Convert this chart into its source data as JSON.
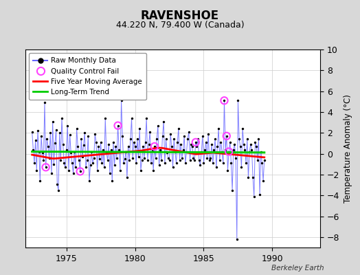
{
  "title": "RAVENSHOE",
  "subtitle": "44.220 N, 79.400 W (Canada)",
  "ylabel": "Temperature Anomaly (°C)",
  "attribution": "Berkeley Earth",
  "ylim": [
    -9,
    10
  ],
  "xlim": [
    1972.0,
    1993.5
  ],
  "yticks": [
    -8,
    -6,
    -4,
    -2,
    0,
    2,
    4,
    6,
    8,
    10
  ],
  "xticks": [
    1975,
    1980,
    1985,
    1990
  ],
  "bg_color": "#d8d8d8",
  "plot_bg": "#ffffff",
  "raw_color": "#6666ff",
  "dot_color": "#000000",
  "ma_color": "#ff0000",
  "trend_color": "#00cc00",
  "qc_color": "#ff44ff",
  "start_year": 1972.5,
  "trend_slope": -0.012,
  "trend_intercept": 0.3,
  "raw_data": [
    2.1,
    0.4,
    -0.9,
    1.3,
    -1.6,
    2.2,
    0.2,
    -2.6,
    1.7,
    0.1,
    -0.6,
    4.9,
    -1.3,
    1.4,
    0.7,
    -0.4,
    2.0,
    -1.9,
    3.1,
    -1.0,
    1.0,
    2.3,
    -2.9,
    -3.5,
    2.0,
    -0.6,
    3.4,
    0.9,
    -0.9,
    -1.3,
    0.4,
    2.7,
    -1.6,
    1.8,
    0.1,
    -0.9,
    -1.9,
    0.2,
    -1.3,
    2.4,
    0.7,
    -0.6,
    -1.7,
    1.4,
    -0.3,
    0.8,
    2.0,
    -1.3,
    -0.6,
    1.7,
    -2.6,
    -1.1,
    0.2,
    -0.9,
    -0.4,
    1.9,
    1.1,
    -1.6,
    0.7,
    -0.5,
    1.1,
    -0.9,
    0.4,
    -1.3,
    3.4,
    0.1,
    -0.6,
    0.9,
    -1.9,
    0.4,
    -2.6,
    1.1,
    -1.1,
    0.7,
    -0.4,
    2.7,
    0.4,
    -1.6,
    5.1,
    1.7,
    -0.9,
    -0.5,
    0.2,
    -2.3,
    0.7,
    -0.6,
    1.4,
    3.4,
    -0.4,
    1.1,
    0.7,
    -0.9,
    1.4,
    -0.3,
    2.4,
    -1.6,
    -0.6,
    0.7,
    -0.4,
    1.1,
    3.4,
    -0.6,
    0.9,
    2.1,
    -0.9,
    0.4,
    -1.6,
    0.7,
    -0.4,
    1.4,
    2.7,
    -1.1,
    0.4,
    -0.6,
    1.7,
    3.1,
    -0.9,
    1.4,
    0.1,
    -0.4,
    -0.6,
    1.9,
    0.7,
    -1.3,
    1.4,
    0.2,
    -0.9,
    1.1,
    2.4,
    -0.6,
    0.9,
    -0.4,
    0.4,
    1.7,
    -0.9,
    0.2,
    1.4,
    2.1,
    -0.6,
    0.9,
    0.7,
    -0.4,
    -0.6,
    1.1,
    0.7,
    1.4,
    -0.6,
    -1.1,
    0.2,
    1.7,
    -0.9,
    0.4,
    1.1,
    -0.4,
    1.9,
    -0.6,
    -0.4,
    0.9,
    -0.9,
    0.4,
    1.4,
    -1.3,
    0.7,
    2.4,
    -0.6,
    1.1,
    0.2,
    -0.9,
    5.1,
    0.4,
    1.7,
    -1.6,
    0.2,
    1.1,
    -0.9,
    -3.5,
    0.4,
    0.9,
    -0.4,
    -8.2,
    5.1,
    1.4,
    0.7,
    -1.3,
    2.4,
    0.9,
    0.4,
    -0.9,
    1.4,
    -2.3,
    0.2,
    0.9,
    0.4,
    -2.3,
    -4.1,
    1.1,
    0.7,
    -0.6,
    1.4,
    -3.9,
    0.2,
    -0.9,
    -2.6,
    -0.6
  ],
  "qc_indices": [
    12,
    42,
    75,
    107,
    143,
    168,
    170,
    172
  ],
  "ma_values": [
    -0.1,
    -0.12,
    -0.14,
    -0.16,
    -0.18,
    -0.2,
    -0.22,
    -0.24,
    -0.26,
    -0.28,
    -0.3,
    -0.32,
    -0.34,
    -0.36,
    -0.38,
    -0.4,
    -0.42,
    -0.44,
    -0.46,
    -0.46,
    -0.46,
    -0.45,
    -0.44,
    -0.43,
    -0.42,
    -0.41,
    -0.4,
    -0.39,
    -0.38,
    -0.37,
    -0.36,
    -0.35,
    -0.34,
    -0.33,
    -0.32,
    -0.31,
    -0.3,
    -0.29,
    -0.28,
    -0.27,
    -0.26,
    -0.25,
    -0.24,
    -0.23,
    -0.22,
    -0.21,
    -0.2,
    -0.19,
    -0.18,
    -0.17,
    -0.16,
    -0.15,
    -0.14,
    -0.13,
    -0.12,
    -0.11,
    -0.1,
    -0.09,
    -0.08,
    -0.07,
    -0.06,
    -0.05,
    -0.04,
    -0.03,
    -0.02,
    -0.01,
    0.0,
    0.01,
    0.02,
    0.03,
    0.04,
    0.05,
    0.06,
    0.07,
    0.08,
    0.09,
    0.1,
    0.11,
    0.12,
    0.13,
    0.14,
    0.15,
    0.16,
    0.17,
    0.18,
    0.19,
    0.2,
    0.21,
    0.22,
    0.23,
    0.24,
    0.25,
    0.26,
    0.27,
    0.28,
    0.29,
    0.3,
    0.32,
    0.34,
    0.36,
    0.38,
    0.4,
    0.42,
    0.44,
    0.46,
    0.48,
    0.5,
    0.52,
    0.54,
    0.55,
    0.56,
    0.56,
    0.56,
    0.55,
    0.54,
    0.52,
    0.5,
    0.48,
    0.46,
    0.44,
    0.42,
    0.4,
    0.38,
    0.36,
    0.34,
    0.32,
    0.3,
    0.28,
    0.26,
    0.24,
    0.22,
    0.2,
    0.18,
    0.16,
    0.14,
    0.12,
    0.1,
    0.08,
    0.06,
    0.04,
    0.02,
    0.0,
    -0.02,
    -0.04,
    -0.04,
    -0.03,
    -0.02,
    -0.01,
    0.0,
    0.01,
    0.02,
    0.03,
    0.04,
    0.05,
    0.06,
    0.07,
    0.08,
    0.09,
    0.1,
    0.09,
    0.08,
    0.07,
    0.06,
    0.05,
    0.04,
    0.03,
    0.02,
    0.01,
    0.0,
    -0.01,
    -0.02,
    -0.03,
    -0.04,
    -0.05,
    -0.06,
    -0.07,
    -0.08,
    -0.09,
    -0.1,
    -0.11,
    -0.12,
    -0.13,
    -0.14,
    -0.15,
    -0.16,
    -0.17,
    -0.18,
    -0.19,
    -0.2,
    -0.21,
    -0.22,
    -0.23,
    -0.24,
    -0.25,
    -0.26,
    -0.27,
    -0.28,
    -0.29,
    -0.3,
    -0.31,
    -0.32,
    -0.33,
    -0.34,
    -0.35
  ]
}
